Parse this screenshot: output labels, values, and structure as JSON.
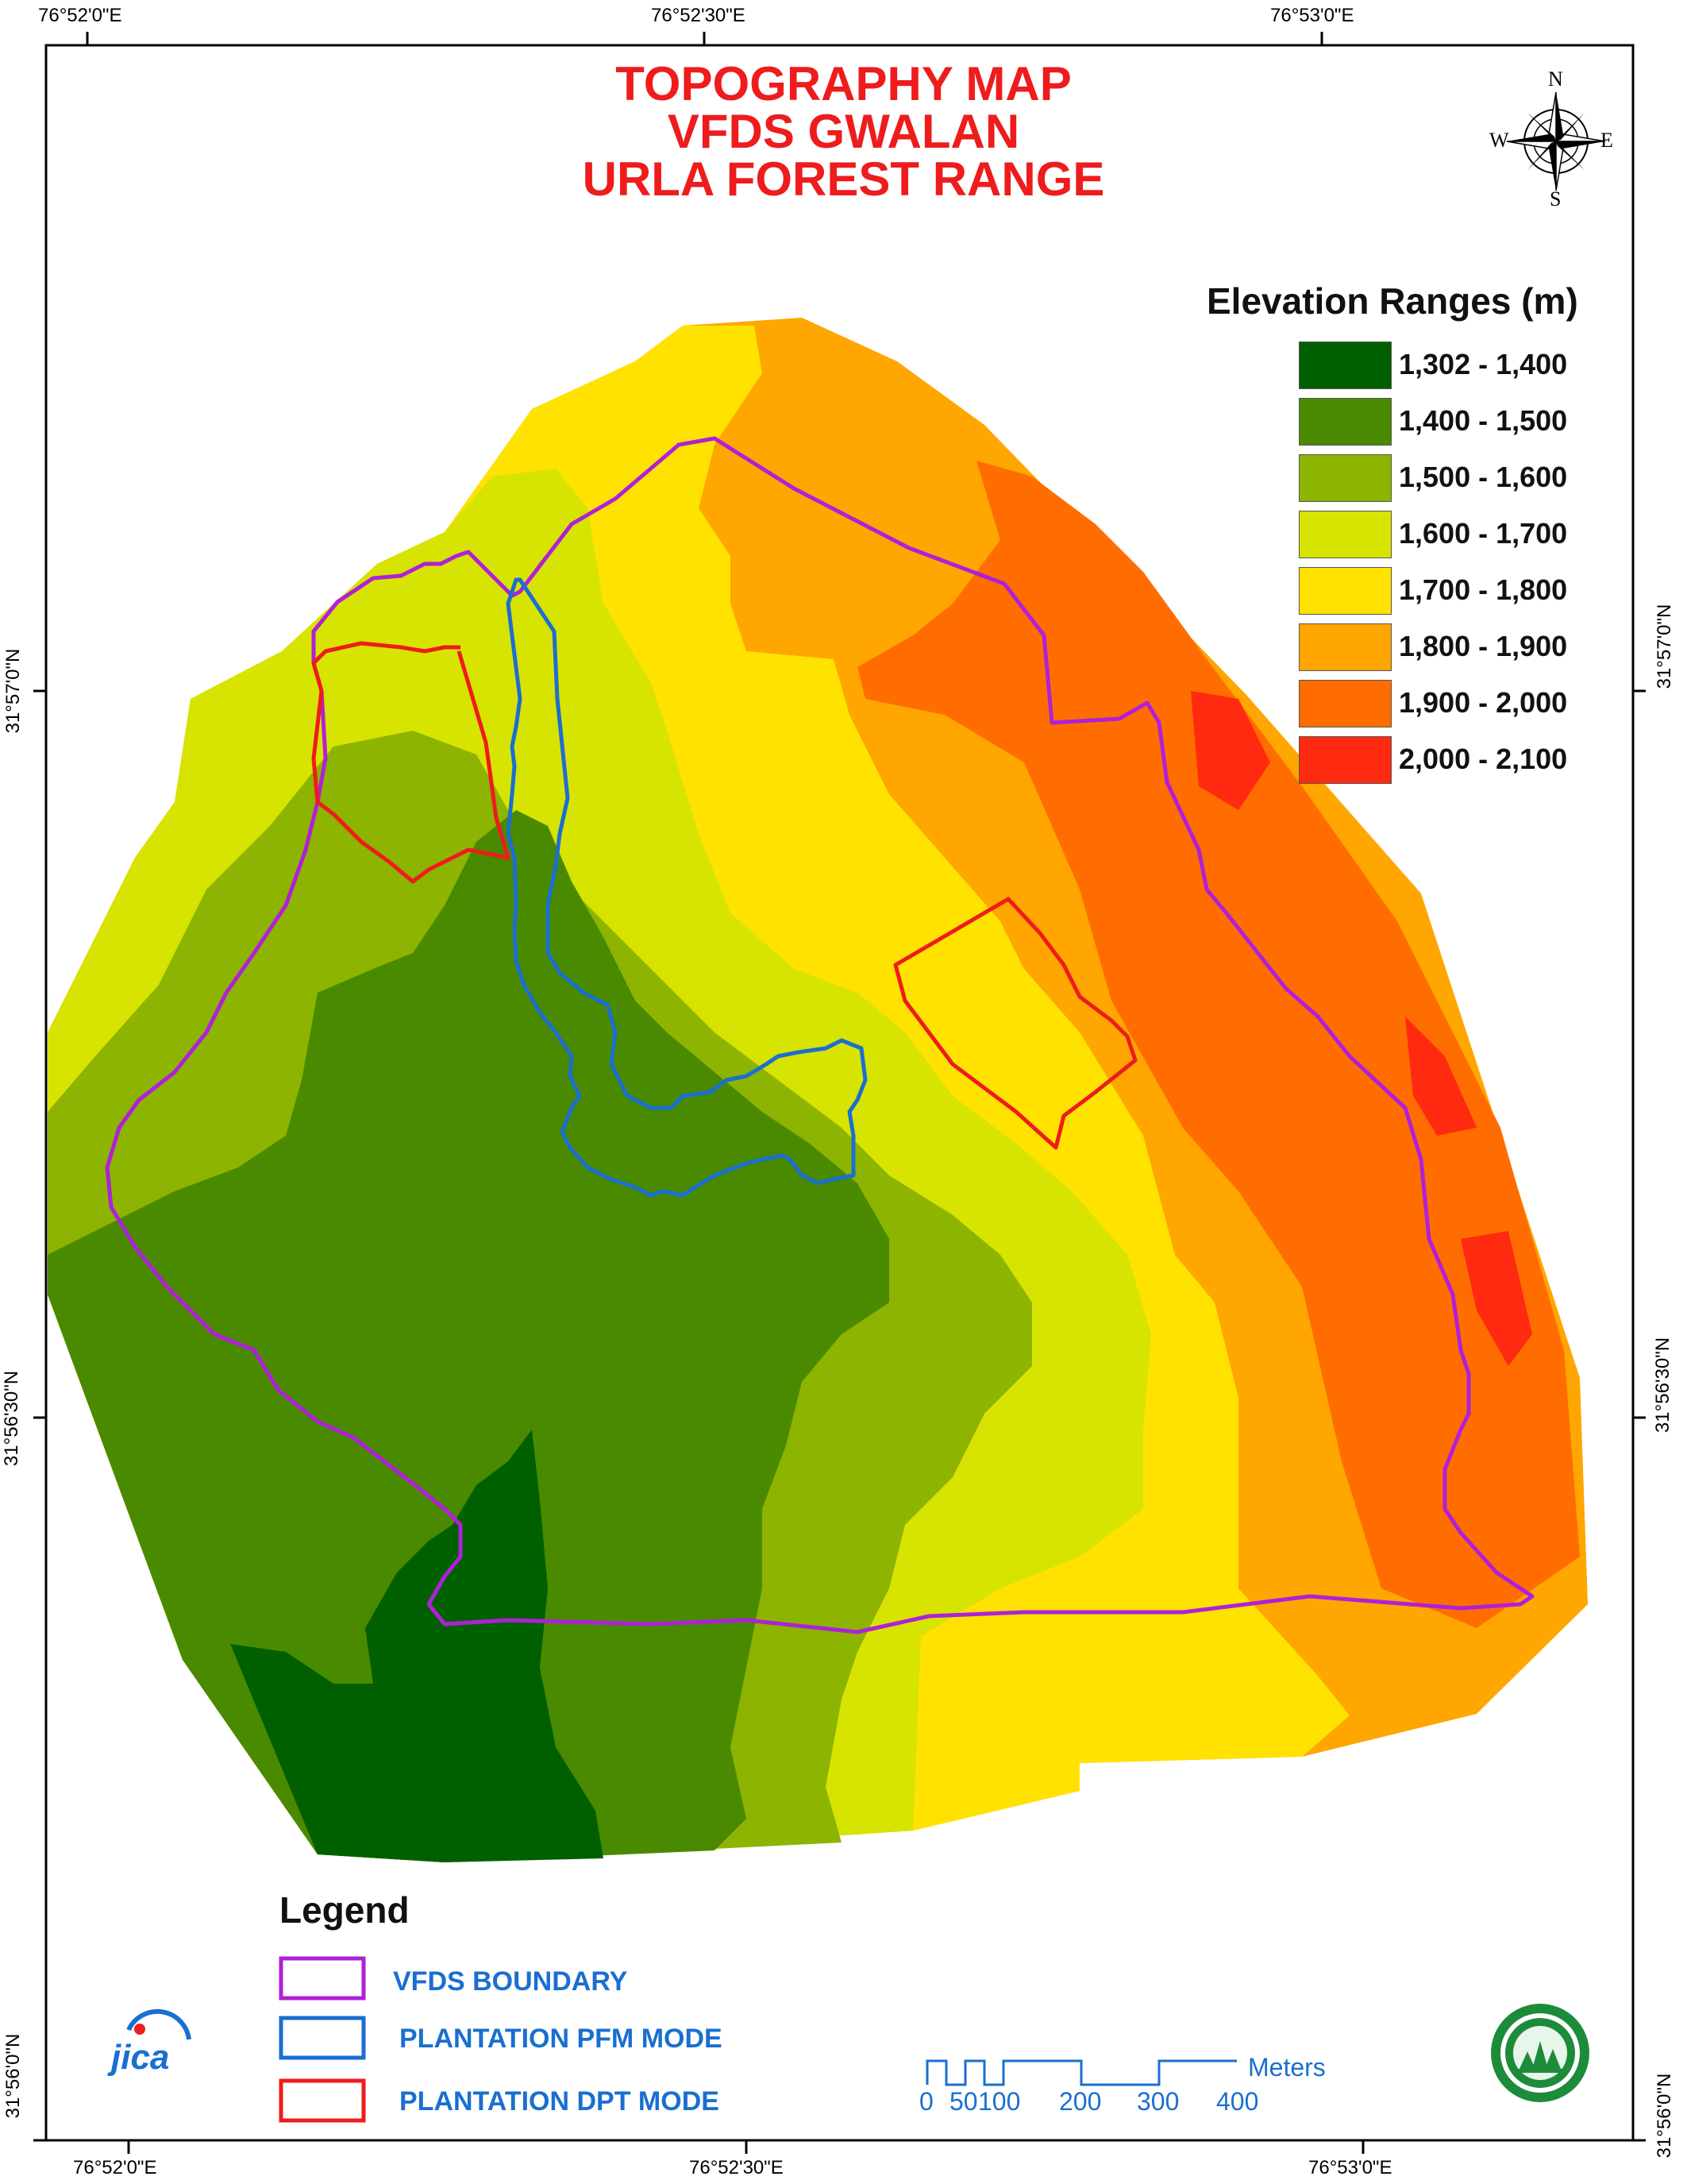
{
  "title": {
    "line1": "TOPOGRAPHY MAP",
    "line2": "VFDS GWALAN",
    "line3": "URLA FOREST RANGE"
  },
  "graticule": {
    "top": [
      "76°52'0\"E",
      "76°52'30\"E",
      "76°53'0\"E"
    ],
    "bottom": [
      "76°52'0\"E",
      "76°52'30\"E",
      "76°53'0\"E"
    ],
    "left": [
      "31°57'0\"N",
      "31°56'30\"N",
      "31°56'0\"N"
    ],
    "right": [
      "31°57'0\"N",
      "31°56'30\"N",
      "31°56'0\"N"
    ]
  },
  "north_arrow": {
    "n": "N",
    "s": "S",
    "e": "E",
    "w": "W"
  },
  "elevation_legend": {
    "title": "Elevation Ranges (m)",
    "classes": [
      {
        "label": "1,302 - 1,400",
        "color": "#006000"
      },
      {
        "label": "1,400 - 1,500",
        "color": "#4a8a00"
      },
      {
        "label": "1,500 - 1,600",
        "color": "#8cb400"
      },
      {
        "label": "1,600 - 1,700",
        "color": "#d7e300"
      },
      {
        "label": "1,700 - 1,800",
        "color": "#ffe200"
      },
      {
        "label": "1,800 - 1,900",
        "color": "#ffa600"
      },
      {
        "label": "1,900 - 2,000",
        "color": "#ff6d00"
      },
      {
        "label": "2,000 - 2,100",
        "color": "#ff2a10"
      }
    ]
  },
  "legend": {
    "title": "Legend",
    "items": [
      {
        "label": "VFDS BOUNDARY",
        "color": "#b020d8"
      },
      {
        "label": "PLANTATION PFM MODE",
        "color": "#1a6fd0"
      },
      {
        "label": "PLANTATION DPT MODE",
        "color": "#ee1c1c"
      }
    ]
  },
  "scale_bar": {
    "unit": "Meters",
    "ticks": [
      "0",
      "50",
      "100",
      "200",
      "300",
      "400"
    ]
  },
  "logos": {
    "left": "jica",
    "right": "forest-department-seal"
  }
}
